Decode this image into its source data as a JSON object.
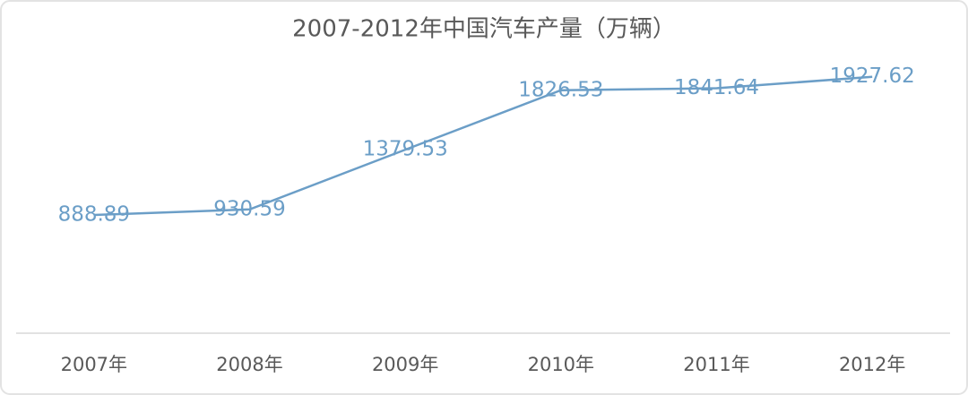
{
  "chart_data": {
    "type": "line",
    "title": "2007-2012年中国汽车产量（万辆）",
    "categories": [
      "2007年",
      "2008年",
      "2009年",
      "2010年",
      "2011年",
      "2012年"
    ],
    "values": [
      888.89,
      930.59,
      1379.53,
      1826.53,
      1841.64,
      1927.62
    ],
    "color": "#6b9ec7",
    "ylim": [
      0,
      2000
    ]
  }
}
